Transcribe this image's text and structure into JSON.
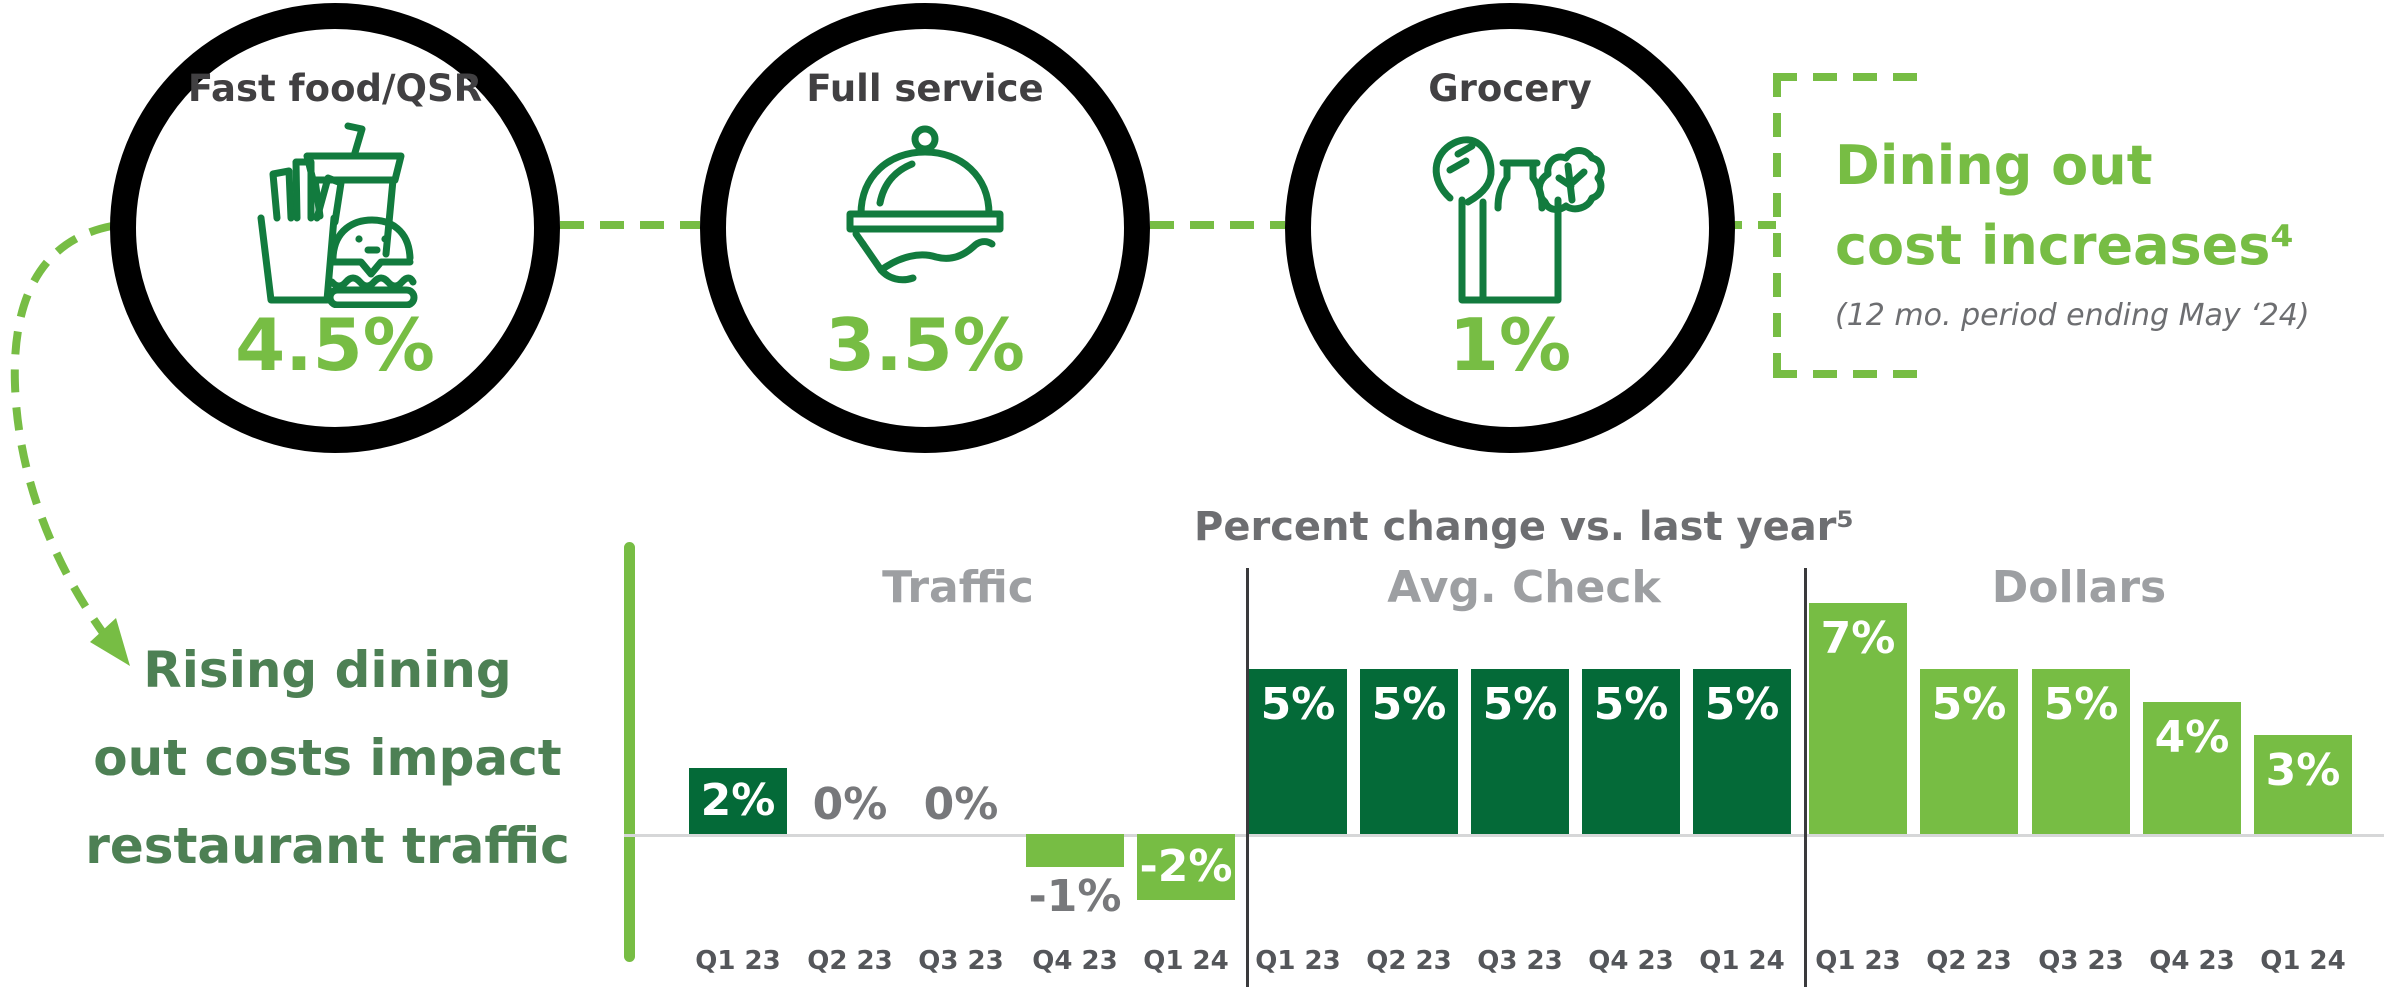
{
  "page": {
    "background": "#FFFFFF"
  },
  "colors": {
    "ring_black": "#000000",
    "accent_green": "#77BD44",
    "dark_green": "#046A38",
    "icon_green": "#127B3E",
    "heading_green": "#4D8054",
    "circle_title_gray": "#414042",
    "chart_title_gray": "#6D6E71",
    "group_title_gray": "#9D9FA2",
    "value_label_gray": "#77787B",
    "axis_label_gray": "#54565A",
    "baseline_gray": "#D6D7D8",
    "separator_gray": "#3A3A3C",
    "white": "#FFFFFF"
  },
  "top_section": {
    "circles": [
      {
        "label": "Fast food/QSR",
        "value": "4.5%",
        "icon": "fast-food-icon"
      },
      {
        "label": "Full service",
        "value": "3.5%",
        "icon": "cloche-icon"
      },
      {
        "label": "Grocery",
        "value": "1%",
        "icon": "grocery-bag-icon"
      }
    ],
    "callout": {
      "heading_lines": [
        "Dining out",
        "cost increases⁴"
      ],
      "subtitle": "(12 mo. period ending May ‘24)"
    }
  },
  "left_note": {
    "heading_lines": [
      "Rising dining",
      "out costs impact",
      "restaurant traffic"
    ]
  },
  "chart_data": {
    "type": "bar",
    "title": "Percent change vs. last year⁵",
    "categories": [
      "Q1 23",
      "Q2 23",
      "Q3 23",
      "Q4 23",
      "Q1 24"
    ],
    "ylim": [
      -2,
      7
    ],
    "unit": "percent",
    "grid": false,
    "legend": false,
    "bar_colors": {
      "dark": "#046A38",
      "light": "#77BD44"
    },
    "groups": [
      {
        "name": "Traffic",
        "values": [
          2,
          0,
          0,
          -1,
          -2
        ],
        "points": [
          {
            "category": "Q1 23",
            "value": 2,
            "label": "2%",
            "bar": "dark",
            "label_style": "in"
          },
          {
            "category": "Q2 23",
            "value": 0,
            "label": "0%",
            "bar": null,
            "label_style": "out"
          },
          {
            "category": "Q3 23",
            "value": 0,
            "label": "0%",
            "bar": null,
            "label_style": "out"
          },
          {
            "category": "Q4 23",
            "value": -1,
            "label": "-1%",
            "bar": "light",
            "label_style": "out"
          },
          {
            "category": "Q1 24",
            "value": -2,
            "label": "-2%",
            "bar": "light",
            "label_style": "in"
          }
        ]
      },
      {
        "name": "Avg. Check",
        "values": [
          5,
          5,
          5,
          5,
          5
        ],
        "points": [
          {
            "category": "Q1 23",
            "value": 5,
            "label": "5%",
            "bar": "dark",
            "label_style": "in"
          },
          {
            "category": "Q2 23",
            "value": 5,
            "label": "5%",
            "bar": "dark",
            "label_style": "in"
          },
          {
            "category": "Q3 23",
            "value": 5,
            "label": "5%",
            "bar": "dark",
            "label_style": "in"
          },
          {
            "category": "Q4 23",
            "value": 5,
            "label": "5%",
            "bar": "dark",
            "label_style": "in"
          },
          {
            "category": "Q1 24",
            "value": 5,
            "label": "5%",
            "bar": "dark",
            "label_style": "in"
          }
        ]
      },
      {
        "name": "Dollars",
        "values": [
          7,
          5,
          5,
          4,
          3
        ],
        "points": [
          {
            "category": "Q1 23",
            "value": 7,
            "label": "7%",
            "bar": "light",
            "label_style": "in"
          },
          {
            "category": "Q2 23",
            "value": 5,
            "label": "5%",
            "bar": "light",
            "label_style": "in"
          },
          {
            "category": "Q3 23",
            "value": 5,
            "label": "5%",
            "bar": "light",
            "label_style": "in"
          },
          {
            "category": "Q4 23",
            "value": 4,
            "label": "4%",
            "bar": "light",
            "label_style": "in"
          },
          {
            "category": "Q1 24",
            "value": 3,
            "label": "3%",
            "bar": "light",
            "label_style": "in"
          }
        ]
      }
    ]
  }
}
